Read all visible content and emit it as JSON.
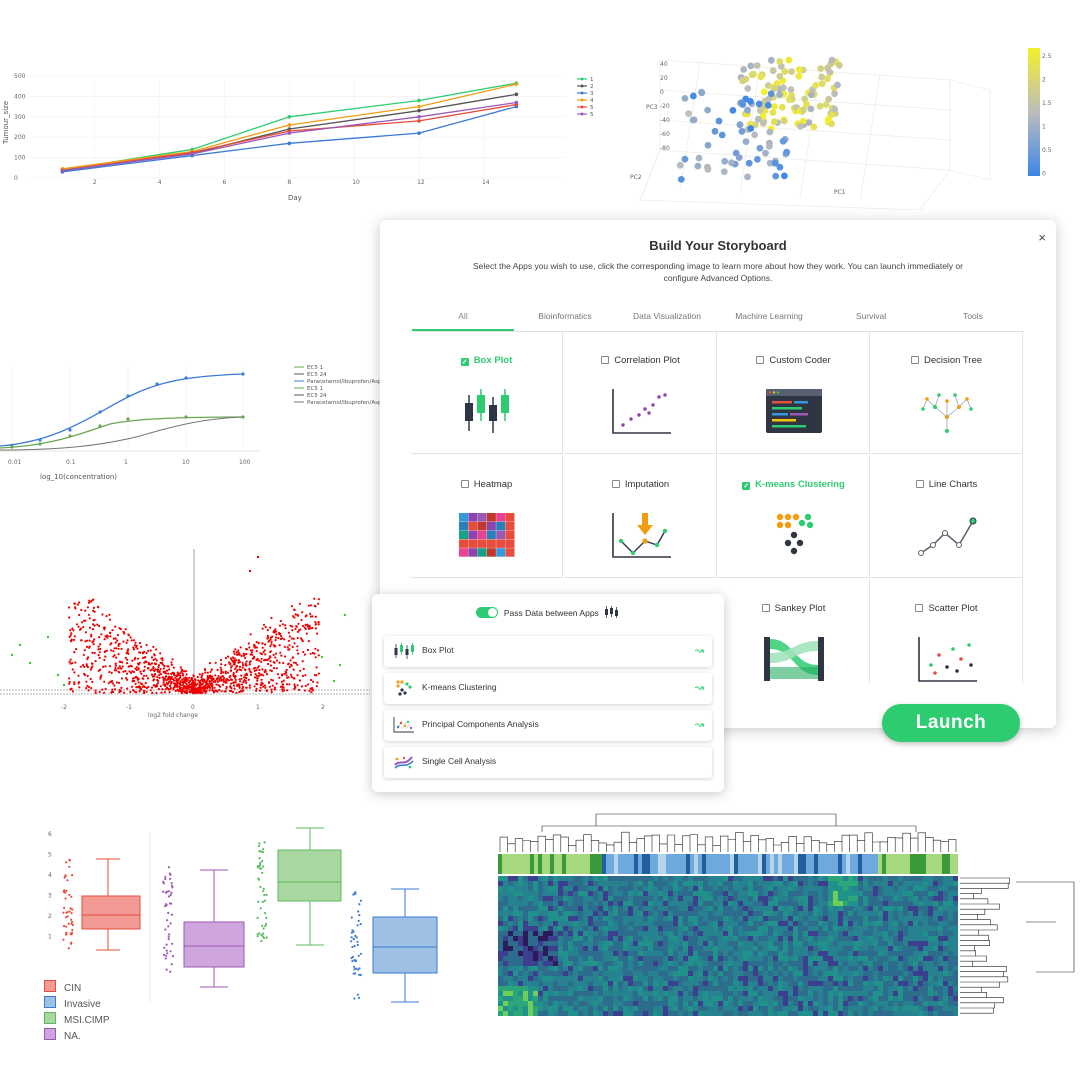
{
  "colors": {
    "accent": "#2ecc71",
    "accent_dark": "#27ae60"
  },
  "modal": {
    "title": "Build Your Storyboard",
    "subtitle": "Select the Apps you wish to use, click the corresponding image to learn more about how they work. You can launch immediately or configure Advanced Options.",
    "close_icon": "×",
    "tabs": [
      {
        "label": "All",
        "active": true
      },
      {
        "label": "Bioinformatics",
        "active": false
      },
      {
        "label": "Data Visualization",
        "active": false
      },
      {
        "label": "Machine Learning",
        "active": false
      },
      {
        "label": "Survival",
        "active": false
      },
      {
        "label": "Tools",
        "active": false
      }
    ],
    "apps": [
      {
        "label": "Box Plot",
        "checked": true,
        "icon": "box-plot-icon"
      },
      {
        "label": "Correlation Plot",
        "checked": false,
        "icon": "correlation-plot-icon"
      },
      {
        "label": "Custom Coder",
        "checked": false,
        "icon": "custom-coder-icon"
      },
      {
        "label": "Decision Tree",
        "checked": false,
        "icon": "decision-tree-icon"
      },
      {
        "label": "Heatmap",
        "checked": false,
        "icon": "heatmap-icon"
      },
      {
        "label": "Imputation",
        "checked": false,
        "icon": "imputation-icon"
      },
      {
        "label": "K-means Clustering",
        "checked": true,
        "icon": "kmeans-icon"
      },
      {
        "label": "Line Charts",
        "checked": false,
        "icon": "line-charts-icon"
      },
      {
        "label": "Sankey Plot",
        "checked": false,
        "icon": "sankey-plot-icon"
      },
      {
        "label": "Scatter Plot",
        "checked": false,
        "icon": "scatter-plot-icon"
      }
    ]
  },
  "launch_label": "Launch",
  "pipeline": {
    "pass_label": "Pass Data between Apps",
    "items": [
      {
        "label": "Box Plot",
        "icon": "box-plot-icon",
        "refresh_icon": "↝"
      },
      {
        "label": "K-means Clustering",
        "icon": "kmeans-icon",
        "refresh_icon": "↝"
      },
      {
        "label": "Principal Components Analysis",
        "icon": "pca-icon",
        "refresh_icon": "↝"
      },
      {
        "label": "Single Cell Analysis",
        "icon": "single-cell-icon",
        "refresh_icon": ""
      }
    ]
  },
  "background_charts": {
    "tumour_line": {
      "ylabel": "Tumour_size",
      "xlabel": "Day",
      "yticks": [
        "0",
        "100",
        "200",
        "300",
        "400",
        "500"
      ],
      "xticks": [
        "2",
        "4",
        "6",
        "8",
        "10",
        "12",
        "14"
      ],
      "legend": [
        "1",
        "2",
        "3",
        "4",
        "5",
        "5"
      ]
    },
    "pca_3d": {
      "axis_labels": [
        "PC3",
        "PC2",
        "PC1"
      ],
      "z_ticks": [
        "40",
        "20",
        "0",
        "-20",
        "-40",
        "-60",
        "-80"
      ],
      "colorbar_ticks": [
        "2.5",
        "2",
        "1.5",
        "1",
        "0.5",
        "0"
      ]
    },
    "dose_response": {
      "xlabel": "log_10(concentration)",
      "xticks": [
        "0.01",
        "0.1",
        "1",
        "10",
        "100"
      ],
      "legend": [
        "EC5 1",
        "EC5 24",
        "Paracetamol/Ibuprofen/Aspirin",
        "EC5 1",
        "EC5 24",
        "Paracetamol/Ibuprofen/Aspirin"
      ]
    },
    "volcano": {
      "xlabel": "log2 fold change",
      "xticks": [
        "-2",
        "-1",
        "0",
        "1",
        "2"
      ]
    },
    "box_legend": [
      "CIN",
      "Invasive",
      "MSI.CIMP",
      "NA."
    ],
    "box_yticks": [
      "6",
      "5",
      "4",
      "3",
      "2",
      "1"
    ]
  },
  "chart_data": [
    {
      "type": "line",
      "xlabel": "Day",
      "ylabel": "Tumour_size",
      "x": [
        1,
        5,
        8,
        12,
        15
      ],
      "ylim": [
        0,
        500
      ],
      "series": [
        {
          "name": "1",
          "color": "#2ecc71",
          "values": [
            40,
            140,
            300,
            380,
            465
          ]
        },
        {
          "name": "2",
          "color": "#555555",
          "values": [
            35,
            120,
            240,
            330,
            410
          ]
        },
        {
          "name": "3",
          "color": "#3a7bd5",
          "values": [
            30,
            110,
            170,
            220,
            350
          ]
        },
        {
          "name": "4",
          "color": "#f39c12",
          "values": [
            45,
            130,
            260,
            350,
            460
          ]
        },
        {
          "name": "5",
          "color": "#e74c3c",
          "values": [
            38,
            125,
            230,
            280,
            360
          ]
        },
        {
          "name": "5",
          "color": "#9b59b6",
          "values": [
            36,
            118,
            220,
            300,
            370
          ]
        }
      ]
    }
  ]
}
